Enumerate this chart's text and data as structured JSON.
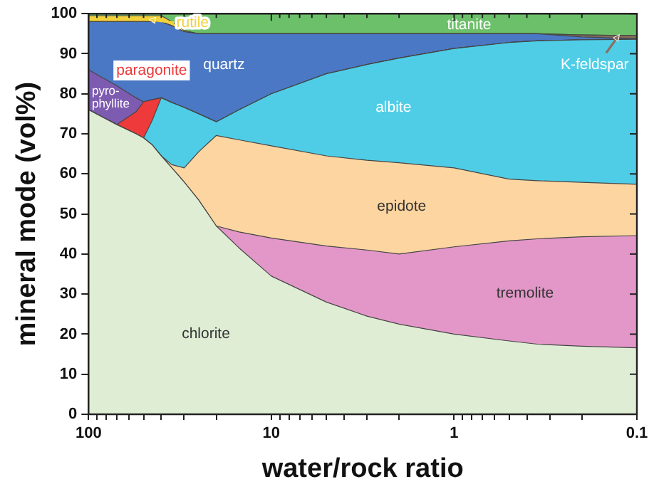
{
  "chart_data": {
    "type": "area",
    "stacked": true,
    "log": "x",
    "xlabel": "water/rock ratio",
    "ylabel": "mineral mode (vol%)",
    "x": [
      100,
      70,
      55,
      50,
      45,
      40,
      35,
      30,
      25,
      20,
      15,
      10,
      5,
      3,
      2,
      1,
      0.5,
      0.35,
      0.2,
      0.1
    ],
    "xlim": [
      100,
      0.1
    ],
    "xticks": [
      100,
      {
        "value": 90,
        "label": null
      },
      {
        "value": 80,
        "label": null
      },
      {
        "value": 70,
        "label": null
      },
      {
        "value": 60,
        "label": null
      },
      {
        "value": 50,
        "label": null
      },
      {
        "value": 40,
        "label": null
      },
      {
        "value": 30,
        "label": null
      },
      {
        "value": 20,
        "label": null
      },
      10,
      {
        "value": 9,
        "label": null
      },
      {
        "value": 8,
        "label": null
      },
      {
        "value": 7,
        "label": null
      },
      {
        "value": 6,
        "label": null
      },
      {
        "value": 5,
        "label": null
      },
      {
        "value": 4,
        "label": null
      },
      {
        "value": 3,
        "label": null
      },
      {
        "value": 2,
        "label": null
      },
      1,
      {
        "value": 0.9,
        "label": null
      },
      {
        "value": 0.8,
        "label": null
      },
      {
        "value": 0.7,
        "label": null
      },
      {
        "value": 0.6,
        "label": null
      },
      {
        "value": 0.5,
        "label": null
      },
      {
        "value": 0.4,
        "label": null
      },
      {
        "value": 0.3,
        "label": null
      },
      {
        "value": 0.2,
        "label": null
      },
      0.1
    ],
    "ylim": [
      0,
      100
    ],
    "yticks": [
      0,
      10,
      20,
      30,
      40,
      50,
      60,
      70,
      80,
      90,
      100
    ],
    "grid": false,
    "legend": false,
    "series": [
      {
        "name": "chlorite",
        "color": "#dfedd5",
        "values": [
          76,
          72.3,
          70,
          69,
          67.3,
          64.5,
          61.5,
          58,
          53.5,
          47,
          41.5,
          34.5,
          28,
          24.5,
          22.5,
          20,
          18.3,
          17.5,
          17,
          16.6
        ]
      },
      {
        "name": "tremolite",
        "color": "#e397c8",
        "values": [
          0,
          0,
          0,
          0,
          0,
          0,
          0,
          0,
          0,
          0,
          4,
          9.5,
          14,
          16.5,
          17.5,
          21.8,
          25,
          26.3,
          27.3,
          28
        ]
      },
      {
        "name": "epidote",
        "color": "#fdd5a0",
        "values": [
          0,
          0,
          0,
          0,
          0,
          0,
          0.8,
          3.5,
          12,
          22.6,
          23,
          23,
          22.5,
          22.4,
          22.8,
          19.7,
          15.4,
          14.5,
          13.6,
          12.8
        ]
      },
      {
        "name": "albite",
        "color": "#4fcde6",
        "values": [
          0,
          0,
          0,
          0,
          5.9,
          14.5,
          15.5,
          15.1,
          9.5,
          3.4,
          7.5,
          13,
          20.5,
          23.9,
          26.1,
          29.8,
          34.1,
          34.9,
          35.6,
          36.2
        ]
      },
      {
        "name": "paragonite",
        "color": "#ee3a3a",
        "values": [
          0,
          0,
          5.5,
          9,
          5.3,
          0,
          0,
          0,
          0,
          0,
          0,
          0,
          0,
          0,
          0,
          0,
          0,
          0,
          0,
          0
        ]
      },
      {
        "name": "pyro-phyllite",
        "color": "#7d5bb0",
        "values": [
          10,
          9.7,
          3.5,
          0,
          0,
          0,
          0,
          0,
          0,
          0,
          0,
          0,
          0,
          0,
          0,
          0,
          0,
          0,
          0,
          0
        ]
      },
      {
        "name": "quartz",
        "color": "#4a78c4",
        "values": [
          12,
          16,
          19,
          20,
          19.5,
          19,
          19.2,
          18.9,
          20,
          22,
          19,
          15,
          10,
          7.7,
          6.1,
          3.7,
          2.2,
          1.8,
          0.7,
          0.2
        ]
      },
      {
        "name": "K-feldspar",
        "color": "#8a6f5a",
        "values": [
          0,
          0,
          0,
          0,
          0,
          0,
          0,
          0,
          0,
          0,
          0,
          0,
          0,
          0,
          0,
          0,
          0,
          0,
          0.5,
          0.7
        ]
      },
      {
        "name": "rutile",
        "color": "#f2d23a",
        "values": [
          1.5,
          1.5,
          1.5,
          1.5,
          1.5,
          1.5,
          1,
          0.3,
          0,
          0,
          0,
          0,
          0,
          0,
          0,
          0,
          0,
          0,
          0,
          0
        ]
      },
      {
        "name": "titanite",
        "color": "#6cc06a",
        "values": [
          0.5,
          0.5,
          0.5,
          0.5,
          0.5,
          0.5,
          2,
          4.2,
          5,
          5,
          5,
          5,
          5,
          5,
          5,
          5,
          5,
          5,
          5.3,
          5.5
        ]
      }
    ]
  }
}
